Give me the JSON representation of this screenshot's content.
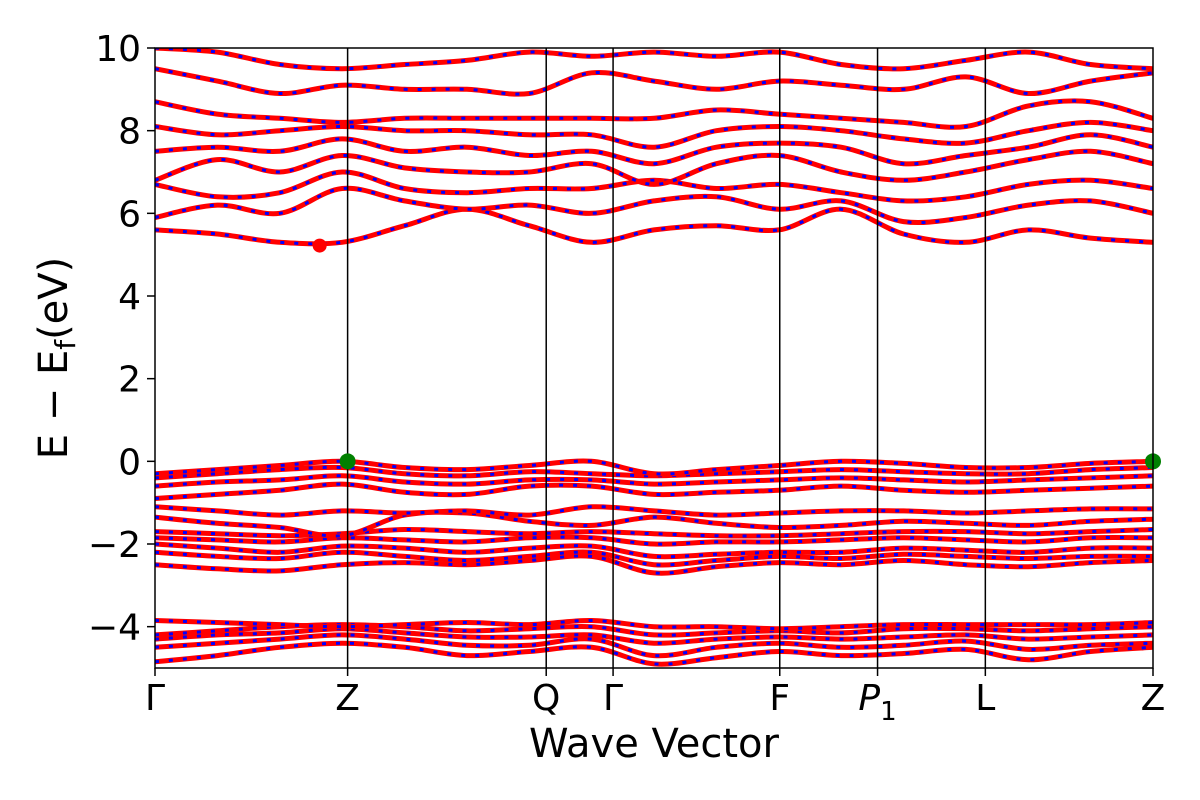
{
  "chart_data": {
    "type": "line",
    "title": "",
    "xlabel": "Wave Vector",
    "ylabel": "E − E",
    "ylabel_sub": "f",
    "ylabel_unit": "(eV)",
    "ylim": [
      -5,
      10
    ],
    "yticks": [
      10,
      8,
      6,
      4,
      2,
      0,
      -2,
      -4
    ],
    "ytick_labels": [
      "10",
      "8",
      "6",
      "4",
      "2",
      "0",
      "−2",
      "−4"
    ],
    "kpath": [
      {
        "label": "Γ",
        "sub": "",
        "italic": false,
        "x": 0.0
      },
      {
        "label": "Z",
        "sub": "",
        "italic": false,
        "x": 0.193
      },
      {
        "label": "Q",
        "sub": "",
        "italic": false,
        "x": 0.392
      },
      {
        "label": "Γ",
        "sub": "",
        "italic": false,
        "x": 0.459
      },
      {
        "label": "F",
        "sub": "",
        "italic": false,
        "x": 0.626
      },
      {
        "label": "P",
        "sub": "1",
        "italic": true,
        "x": 0.724
      },
      {
        "label": "L",
        "sub": "",
        "italic": false,
        "x": 0.832
      },
      {
        "label": "Z",
        "sub": "",
        "italic": false,
        "x": 1.0
      }
    ],
    "band_color": "#ff0000",
    "band_dash_color": "#0000ff",
    "cbm_marker": {
      "x": 0.165,
      "y": 5.22,
      "color": "#ff0000"
    },
    "vbm_markers": [
      {
        "x": 0.193,
        "y": 0.0,
        "color": "#008000"
      },
      {
        "x": 1.0,
        "y": 0.0,
        "color": "#008000"
      }
    ],
    "bands": [
      {
        "name": "",
        "values": [
          -4.85,
          -4.7,
          -4.5,
          -4.4,
          -4.5,
          -4.7,
          -4.6,
          -4.5,
          -4.9,
          -4.75,
          -4.6,
          -4.7,
          -4.65,
          -4.55,
          -4.8,
          -4.6,
          -4.5
        ]
      },
      {
        "name": "",
        "values": [
          -4.5,
          -4.4,
          -4.3,
          -4.2,
          -4.3,
          -4.45,
          -4.45,
          -4.3,
          -4.7,
          -4.5,
          -4.4,
          -4.5,
          -4.45,
          -4.35,
          -4.55,
          -4.45,
          -4.4
        ]
      },
      {
        "name": "",
        "values": [
          -4.3,
          -4.2,
          -4.15,
          -4.05,
          -4.15,
          -4.25,
          -4.25,
          -4.2,
          -4.4,
          -4.3,
          -4.25,
          -4.3,
          -4.25,
          -4.2,
          -4.3,
          -4.25,
          -4.2
        ]
      },
      {
        "name": "",
        "values": [
          -4.2,
          -4.1,
          -4.0,
          -3.95,
          -4.0,
          -4.1,
          -4.05,
          -4.0,
          -4.2,
          -4.15,
          -4.1,
          -4.15,
          -4.05,
          -4.05,
          -4.1,
          -4.05,
          -4.0
        ]
      },
      {
        "name": "",
        "values": [
          -3.85,
          -3.9,
          -3.95,
          -4.0,
          -3.95,
          -3.9,
          -3.95,
          -3.85,
          -4.0,
          -4.0,
          -4.05,
          -4.0,
          -3.95,
          -3.95,
          -3.95,
          -3.95,
          -3.9
        ]
      },
      {
        "name": "",
        "values": [
          -2.5,
          -2.6,
          -2.65,
          -2.5,
          -2.45,
          -2.5,
          -2.4,
          -2.3,
          -2.7,
          -2.55,
          -2.45,
          -2.5,
          -2.4,
          -2.5,
          -2.55,
          -2.45,
          -2.4
        ]
      },
      {
        "name": "",
        "values": [
          -2.2,
          -2.3,
          -2.35,
          -2.2,
          -2.3,
          -2.4,
          -2.3,
          -2.2,
          -2.5,
          -2.4,
          -2.3,
          -2.35,
          -2.25,
          -2.3,
          -2.35,
          -2.3,
          -2.3
        ]
      },
      {
        "name": "",
        "values": [
          -2.0,
          -2.1,
          -2.2,
          -2.05,
          -2.1,
          -2.2,
          -2.1,
          -2.05,
          -2.3,
          -2.25,
          -2.2,
          -2.2,
          -2.1,
          -2.15,
          -2.2,
          -2.1,
          -2.1
        ]
      },
      {
        "name": "",
        "values": [
          -1.85,
          -1.9,
          -1.95,
          -1.85,
          -1.9,
          -1.95,
          -1.85,
          -1.85,
          -2.0,
          -1.95,
          -1.95,
          -1.9,
          -1.85,
          -1.9,
          -1.95,
          -1.85,
          -1.85
        ]
      },
      {
        "name": "",
        "values": [
          -1.7,
          -1.75,
          -1.8,
          -1.75,
          -1.65,
          -1.7,
          -1.75,
          -1.7,
          -1.75,
          -1.8,
          -1.8,
          -1.75,
          -1.7,
          -1.7,
          -1.75,
          -1.7,
          -1.65
        ]
      },
      {
        "name": "",
        "values": [
          -1.35,
          -1.5,
          -1.6,
          -1.8,
          -1.3,
          -1.25,
          -1.45,
          -1.55,
          -1.35,
          -1.5,
          -1.6,
          -1.55,
          -1.45,
          -1.5,
          -1.55,
          -1.45,
          -1.4
        ]
      },
      {
        "name": "",
        "values": [
          -1.1,
          -1.2,
          -1.3,
          -1.2,
          -1.25,
          -1.2,
          -1.3,
          -1.1,
          -1.2,
          -1.3,
          -1.25,
          -1.2,
          -1.2,
          -1.25,
          -1.2,
          -1.15,
          -1.15
        ]
      },
      {
        "name": "",
        "values": [
          -0.9,
          -0.8,
          -0.7,
          -0.55,
          -0.75,
          -0.8,
          -0.6,
          -0.6,
          -0.8,
          -0.75,
          -0.7,
          -0.6,
          -0.7,
          -0.75,
          -0.7,
          -0.65,
          -0.6
        ]
      },
      {
        "name": "",
        "values": [
          -0.6,
          -0.5,
          -0.45,
          -0.35,
          -0.5,
          -0.55,
          -0.45,
          -0.45,
          -0.55,
          -0.5,
          -0.45,
          -0.4,
          -0.45,
          -0.5,
          -0.45,
          -0.4,
          -0.35
        ]
      },
      {
        "name": "",
        "values": [
          -0.4,
          -0.3,
          -0.2,
          -0.15,
          -0.3,
          -0.35,
          -0.25,
          -0.3,
          -0.35,
          -0.3,
          -0.25,
          -0.2,
          -0.25,
          -0.3,
          -0.3,
          -0.2,
          -0.15
        ]
      },
      {
        "name": "",
        "values": [
          -0.3,
          -0.2,
          -0.1,
          0.0,
          -0.15,
          -0.2,
          -0.1,
          0.0,
          -0.3,
          -0.2,
          -0.1,
          0.0,
          -0.05,
          -0.15,
          -0.15,
          -0.05,
          0.0
        ]
      },
      {
        "name": "",
        "values": [
          5.6,
          5.5,
          5.3,
          5.3,
          5.7,
          6.1,
          5.7,
          5.3,
          5.6,
          5.7,
          5.6,
          6.1,
          5.5,
          5.3,
          5.6,
          5.4,
          5.3
        ]
      },
      {
        "name": "",
        "values": [
          5.9,
          6.2,
          6.0,
          6.6,
          6.3,
          6.1,
          6.2,
          6.0,
          6.3,
          6.4,
          6.1,
          6.3,
          5.8,
          5.9,
          6.2,
          6.3,
          6.0
        ]
      },
      {
        "name": "",
        "values": [
          6.7,
          6.4,
          6.5,
          7.0,
          6.6,
          6.5,
          6.6,
          6.6,
          6.8,
          6.6,
          6.7,
          6.5,
          6.3,
          6.4,
          6.7,
          6.8,
          6.6
        ]
      },
      {
        "name": "",
        "values": [
          6.8,
          7.3,
          7.0,
          7.4,
          7.1,
          7.0,
          7.0,
          7.2,
          6.7,
          7.2,
          7.4,
          7.0,
          6.8,
          7.0,
          7.3,
          7.5,
          7.2
        ]
      },
      {
        "name": "",
        "values": [
          7.5,
          7.6,
          7.5,
          7.8,
          7.5,
          7.6,
          7.4,
          7.5,
          7.2,
          7.6,
          7.7,
          7.6,
          7.2,
          7.4,
          7.6,
          7.9,
          7.6
        ]
      },
      {
        "name": "",
        "values": [
          8.1,
          7.9,
          8.0,
          8.1,
          8.0,
          8.0,
          7.9,
          7.9,
          7.6,
          8.0,
          8.1,
          8.0,
          7.8,
          7.7,
          8.0,
          8.2,
          8.0
        ]
      },
      {
        "name": "",
        "values": [
          8.7,
          8.4,
          8.3,
          8.2,
          8.3,
          8.3,
          8.3,
          8.3,
          8.3,
          8.5,
          8.4,
          8.3,
          8.2,
          8.1,
          8.6,
          8.7,
          8.3
        ]
      },
      {
        "name": "",
        "values": [
          9.5,
          9.2,
          8.9,
          9.1,
          9.0,
          9.0,
          8.9,
          9.4,
          9.2,
          9.0,
          9.2,
          9.1,
          9.0,
          9.3,
          8.9,
          9.2,
          9.4
        ]
      },
      {
        "name": "",
        "values": [
          10.0,
          9.9,
          9.6,
          9.5,
          9.6,
          9.7,
          9.9,
          9.8,
          9.9,
          9.8,
          9.9,
          9.6,
          9.5,
          9.7,
          9.9,
          9.6,
          9.5
        ]
      }
    ]
  }
}
